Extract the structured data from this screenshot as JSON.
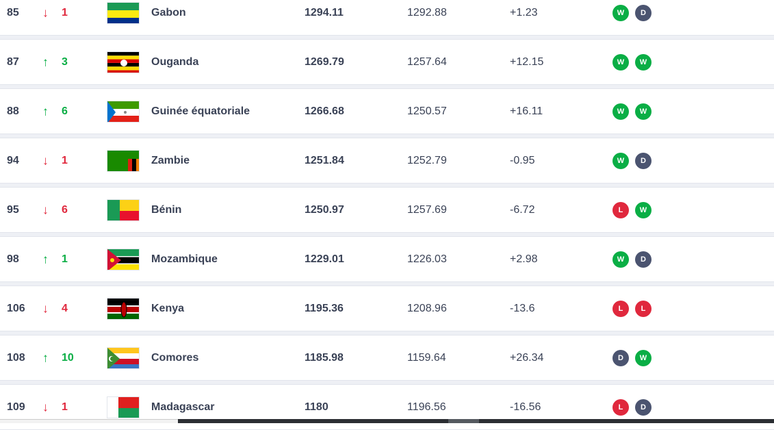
{
  "rows": [
    {
      "rank": "85",
      "dir": "down",
      "change": "1",
      "country": "Gabon",
      "flag": "gabon",
      "points": "1294.11",
      "previous": "1292.88",
      "diff": "+1.23",
      "form": [
        "W",
        "D"
      ]
    },
    {
      "rank": "87",
      "dir": "up",
      "change": "3",
      "country": "Ouganda",
      "flag": "uganda",
      "points": "1269.79",
      "previous": "1257.64",
      "diff": "+12.15",
      "form": [
        "W",
        "W"
      ]
    },
    {
      "rank": "88",
      "dir": "up",
      "change": "6",
      "country": "Guinée équatoriale",
      "flag": "equatorial-guinea",
      "points": "1266.68",
      "previous": "1250.57",
      "diff": "+16.11",
      "form": [
        "W",
        "W"
      ]
    },
    {
      "rank": "94",
      "dir": "down",
      "change": "1",
      "country": "Zambie",
      "flag": "zambia",
      "points": "1251.84",
      "previous": "1252.79",
      "diff": "-0.95",
      "form": [
        "W",
        "D"
      ]
    },
    {
      "rank": "95",
      "dir": "down",
      "change": "6",
      "country": "Bénin",
      "flag": "benin",
      "points": "1250.97",
      "previous": "1257.69",
      "diff": "-6.72",
      "form": [
        "L",
        "W"
      ]
    },
    {
      "rank": "98",
      "dir": "up",
      "change": "1",
      "country": "Mozambique",
      "flag": "mozambique",
      "points": "1229.01",
      "previous": "1226.03",
      "diff": "+2.98",
      "form": [
        "W",
        "D"
      ]
    },
    {
      "rank": "106",
      "dir": "down",
      "change": "4",
      "country": "Kenya",
      "flag": "kenya",
      "points": "1195.36",
      "previous": "1208.96",
      "diff": "-13.6",
      "form": [
        "L",
        "L"
      ]
    },
    {
      "rank": "108",
      "dir": "up",
      "change": "10",
      "country": "Comores",
      "flag": "comoros",
      "points": "1185.98",
      "previous": "1159.64",
      "diff": "+26.34",
      "form": [
        "D",
        "W"
      ]
    },
    {
      "rank": "109",
      "dir": "down",
      "change": "1",
      "country": "Madagascar",
      "flag": "madagascar",
      "points": "1180",
      "previous": "1196.56",
      "diff": "-16.56",
      "form": [
        "L",
        "D"
      ]
    }
  ],
  "colors": {
    "up": "#0aae45",
    "down": "#e0283d",
    "win": "#0aae45",
    "draw": "#4b5470",
    "loss": "#e0283d"
  }
}
